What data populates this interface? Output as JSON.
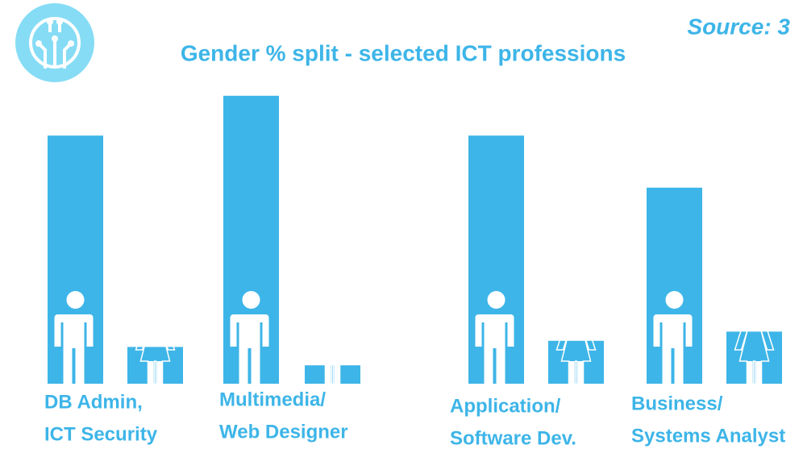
{
  "chart_data": {
    "type": "bar",
    "title": "Gender % split - selected ICT professions",
    "source": "Source: 3",
    "categories": [
      [
        "DB Admin,",
        "ICT Security"
      ],
      [
        "Multimedia/",
        "Web Designer"
      ],
      [
        "Application/",
        "Software Dev."
      ],
      [
        "Business/",
        "Systems Analyst"
      ]
    ],
    "series": [
      {
        "color": "#3db5e8",
        "values": [
          81,
          94,
          81,
          64
        ]
      },
      {
        "color": "#3db5e8",
        "values": [
          12,
          6,
          14,
          17
        ]
      }
    ],
    "ylim": [
      0,
      100
    ]
  }
}
